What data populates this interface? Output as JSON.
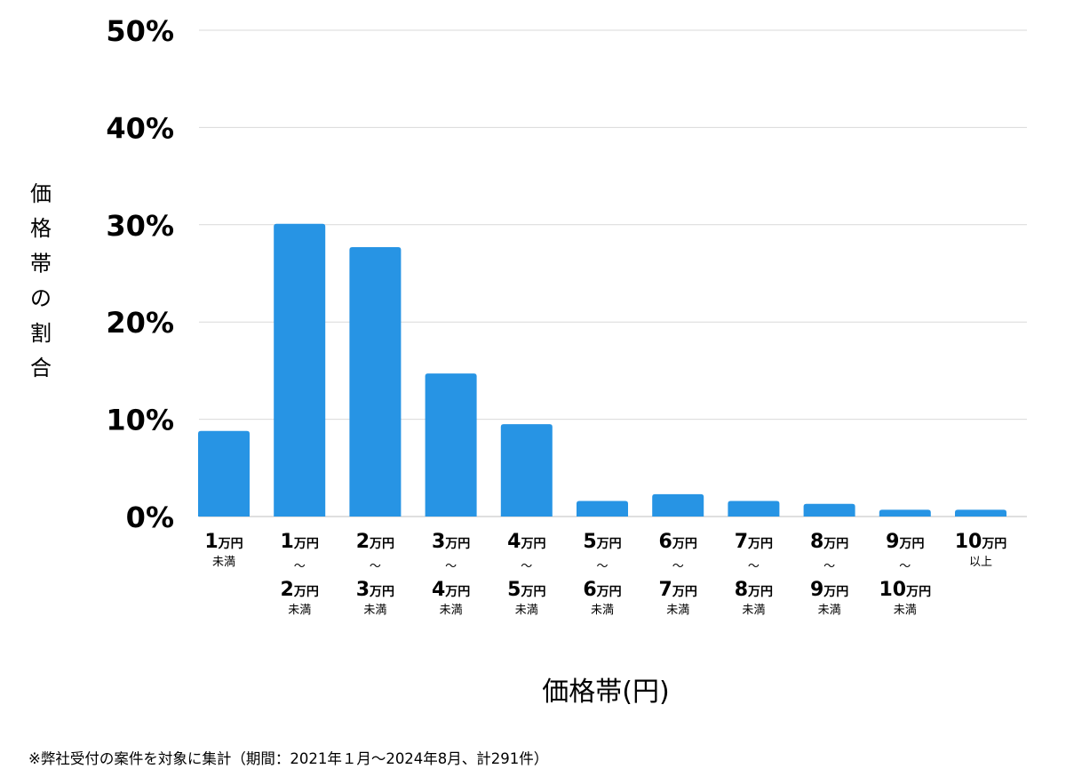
{
  "chart_data": {
    "type": "bar",
    "title": "",
    "xlabel": "価格帯(円)",
    "ylabel": "価格帯の割合",
    "ylim": [
      0,
      50
    ],
    "ytick_labels": [
      "0%",
      "10%",
      "20%",
      "30%",
      "40%",
      "50%"
    ],
    "grid": true,
    "bar_color": "#2794e4",
    "grid_color": "#d9d9d9",
    "categories": [
      {
        "lines": [
          "1万円",
          "未満"
        ],
        "value": 8.8
      },
      {
        "lines": [
          "1万円",
          "〜",
          "2万円",
          "未満"
        ],
        "value": 30.1
      },
      {
        "lines": [
          "2万円",
          "〜",
          "3万円",
          "未満"
        ],
        "value": 27.7
      },
      {
        "lines": [
          "3万円",
          "〜",
          "4万円",
          "未満"
        ],
        "value": 14.7
      },
      {
        "lines": [
          "4万円",
          "〜",
          "5万円",
          "未満"
        ],
        "value": 9.5
      },
      {
        "lines": [
          "5万円",
          "〜",
          "6万円",
          "未満"
        ],
        "value": 1.6
      },
      {
        "lines": [
          "6万円",
          "〜",
          "7万円",
          "未満"
        ],
        "value": 2.3
      },
      {
        "lines": [
          "7万円",
          "〜",
          "8万円",
          "未満"
        ],
        "value": 1.6
      },
      {
        "lines": [
          "8万円",
          "〜",
          "9万円",
          "未満"
        ],
        "value": 1.3
      },
      {
        "lines": [
          "9万円",
          "〜",
          "10万円",
          "未満"
        ],
        "value": 0.7
      },
      {
        "lines": [
          "10万円",
          "以上"
        ],
        "value": 0.7
      }
    ]
  },
  "footnote": "※弊社受付の案件を対象に集計（期間：2021年１月〜2024年8月、計291件）"
}
